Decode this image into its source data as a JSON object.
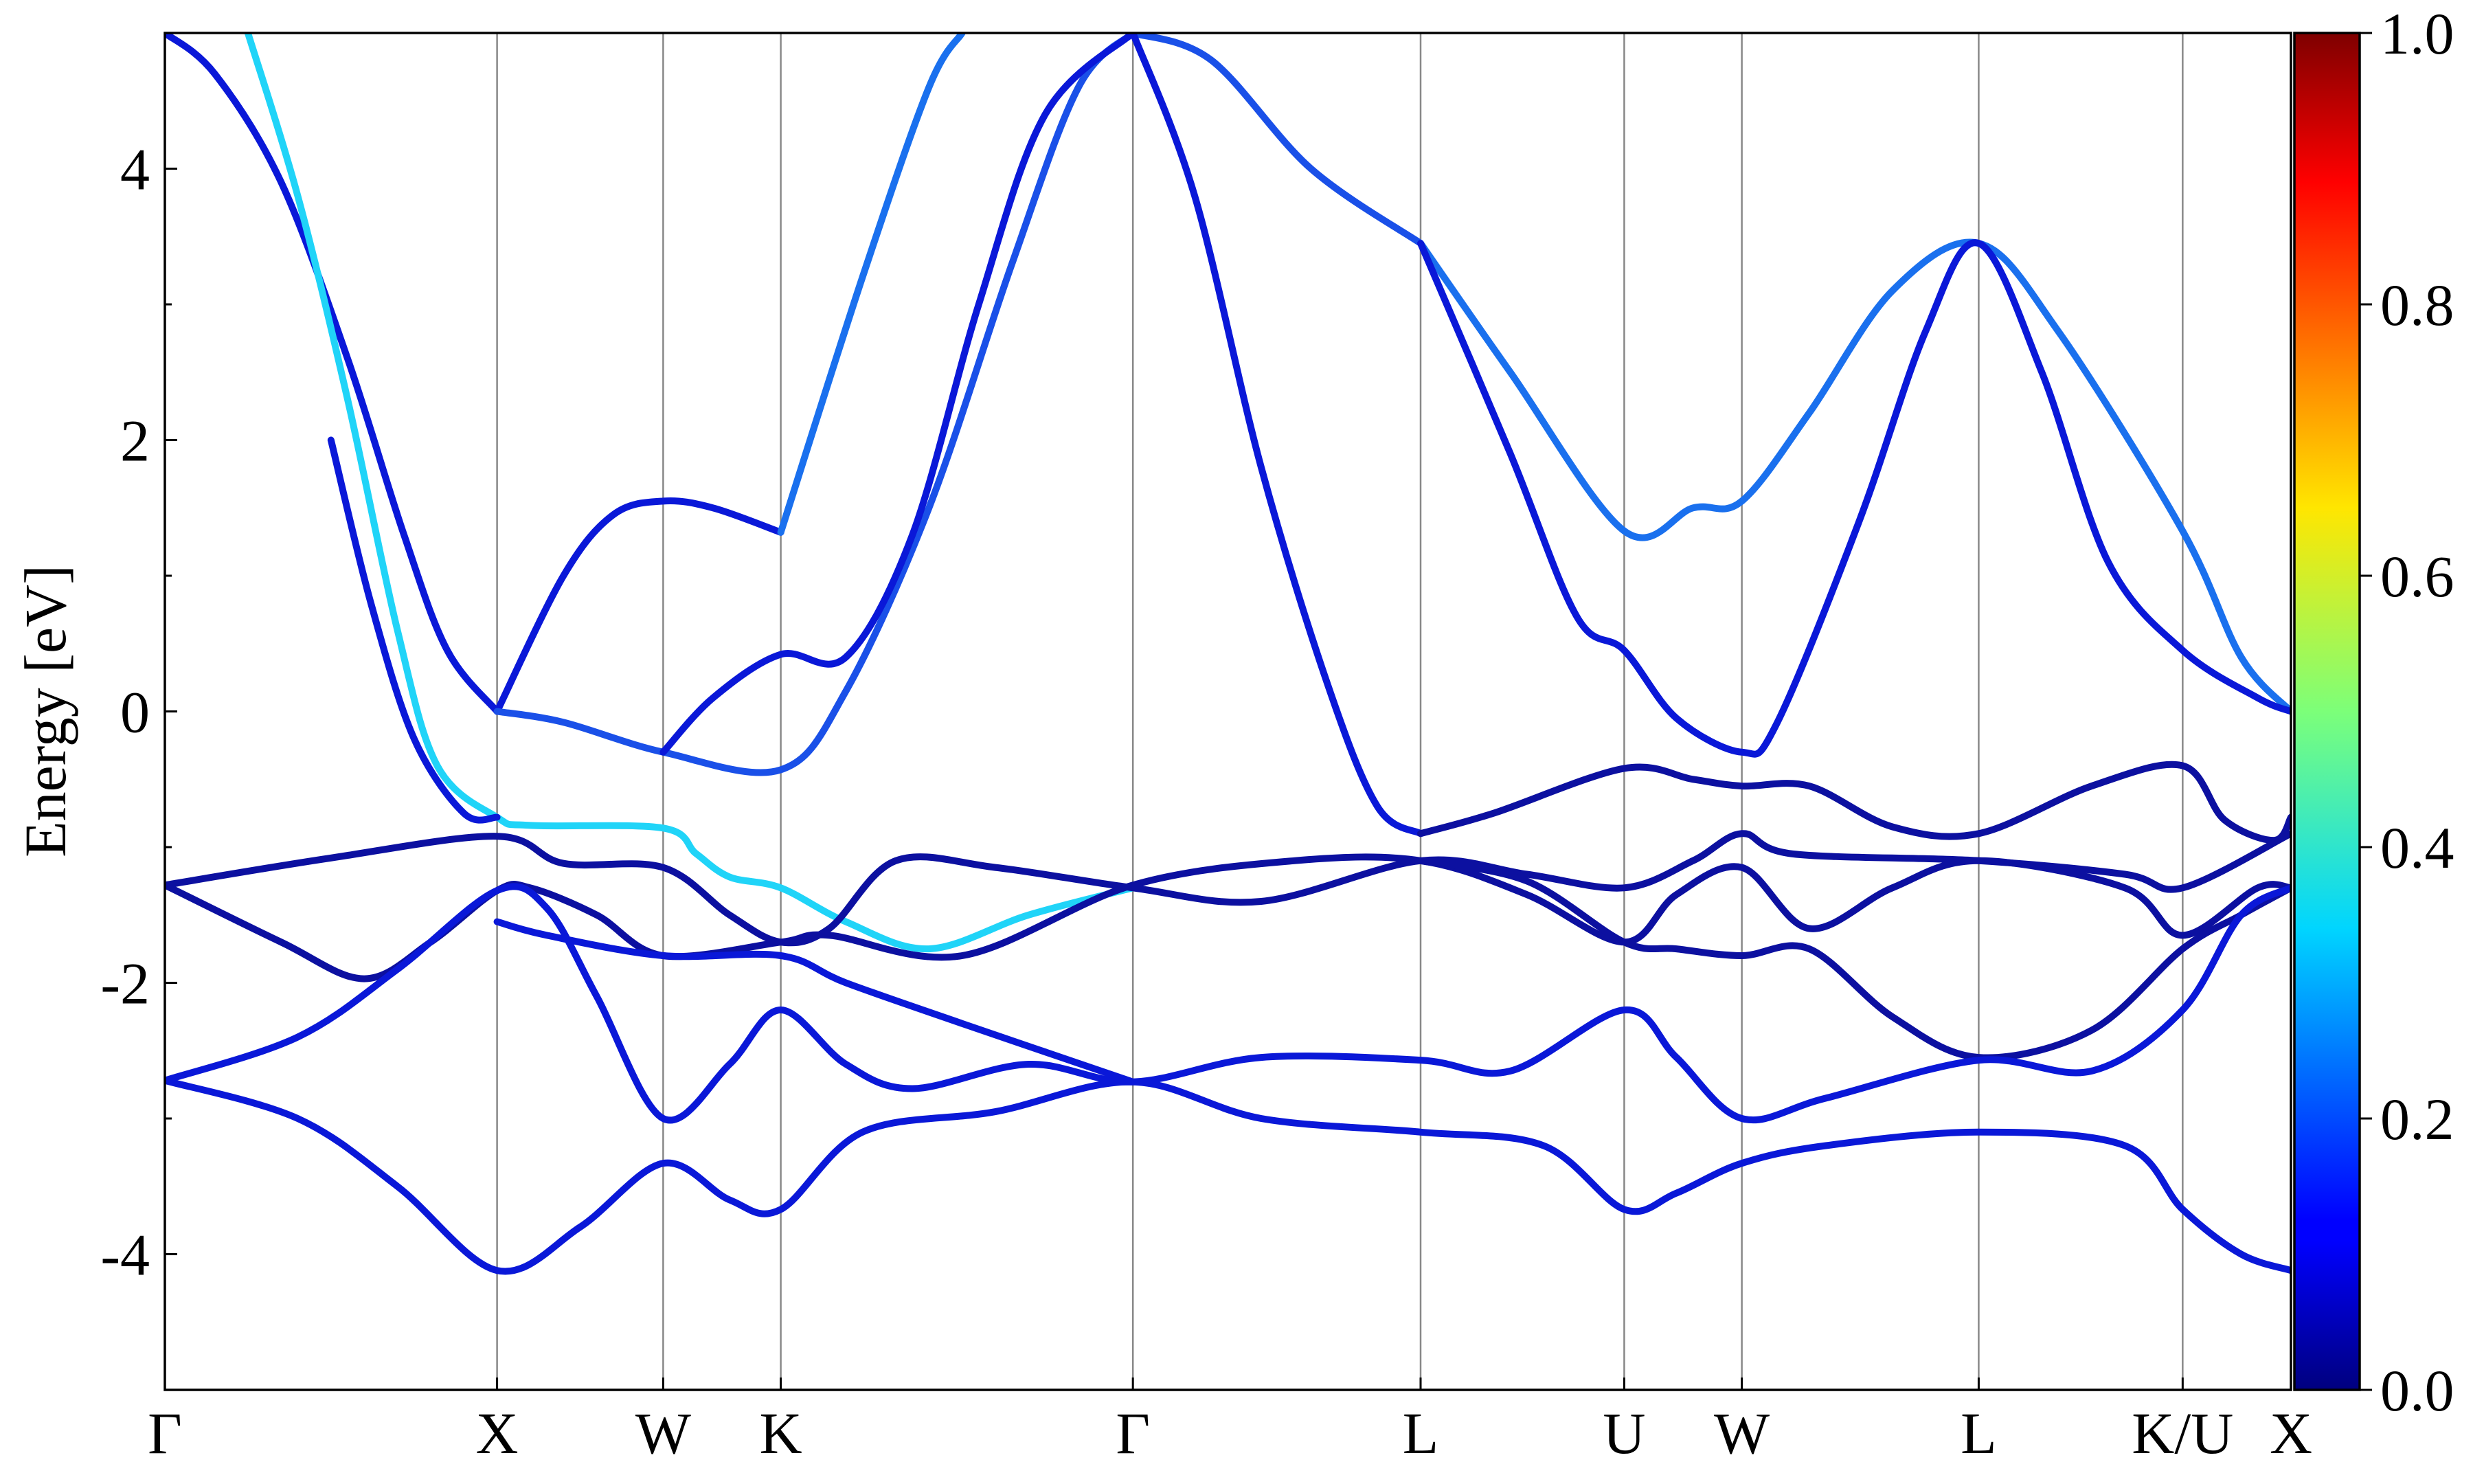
{
  "chart_data": {
    "type": "line",
    "title": "",
    "xlabel": "",
    "ylabel": "Energy [eV]",
    "ylim": [
      -5,
      5
    ],
    "yticks": [
      -4,
      -2,
      0,
      2,
      4
    ],
    "ytick_labels": [
      "-4",
      "-2",
      "0",
      "2",
      "4"
    ],
    "grid": false,
    "kpath": {
      "positions": [
        0,
        1,
        1.5,
        1.854,
        2.914,
        3.78,
        4.393,
        4.747,
        5.46,
        6.074,
        6.4
      ],
      "labels": [
        "Γ",
        "X",
        "W",
        "K",
        "Γ",
        "L",
        "U",
        "W",
        "L",
        "K/U",
        "X"
      ]
    },
    "colorbar": {
      "colormap": "jet",
      "range": [
        0.0,
        1.0
      ],
      "ticks": [
        0.0,
        0.2,
        0.4,
        0.6,
        0.8,
        1.0
      ],
      "tick_labels": [
        "0.0",
        "0.2",
        "0.4",
        "0.6",
        "0.8",
        "1.0"
      ]
    },
    "series": [
      {
        "color": "#0a18d8",
        "points": [
          [
            0,
            5.0
          ],
          [
            0.15,
            4.7
          ],
          [
            0.35,
            3.9
          ],
          [
            0.55,
            2.6
          ],
          [
            0.72,
            1.3
          ],
          [
            0.85,
            0.45
          ],
          [
            1.0,
            0.0
          ]
        ]
      },
      {
        "color": "#20d4f8",
        "points": [
          [
            0.25,
            5.0
          ],
          [
            0.4,
            3.8
          ],
          [
            0.55,
            2.3
          ],
          [
            0.7,
            0.6
          ],
          [
            0.82,
            -0.4
          ],
          [
            1.0,
            -0.78
          ],
          [
            1.1,
            -0.84
          ],
          [
            1.5,
            -0.86
          ],
          [
            1.6,
            -1.05
          ],
          [
            1.7,
            -1.22
          ],
          [
            1.854,
            -1.3
          ],
          [
            2.05,
            -1.55
          ],
          [
            2.3,
            -1.75
          ],
          [
            2.6,
            -1.5
          ],
          [
            2.914,
            -1.3
          ]
        ]
      },
      {
        "color": "#0a18d8",
        "points": [
          [
            0.5,
            2.0
          ],
          [
            0.62,
            0.8
          ],
          [
            0.75,
            -0.2
          ],
          [
            0.9,
            -0.75
          ],
          [
            1.0,
            -0.78
          ]
        ]
      },
      {
        "color": "#0a18d8",
        "points": [
          [
            1.0,
            0.0
          ],
          [
            1.2,
            1.0
          ],
          [
            1.35,
            1.45
          ],
          [
            1.5,
            1.55
          ],
          [
            1.65,
            1.5
          ],
          [
            1.854,
            1.32
          ]
        ]
      },
      {
        "color": "#1a50e8",
        "points": [
          [
            1.0,
            0.0
          ],
          [
            1.2,
            -0.08
          ],
          [
            1.5,
            -0.3
          ],
          [
            1.854,
            -0.43
          ],
          [
            2.05,
            0.15
          ],
          [
            2.3,
            1.5
          ],
          [
            2.55,
            3.3
          ],
          [
            2.75,
            4.6
          ],
          [
            2.914,
            5.0
          ]
        ]
      },
      {
        "color": "#1a70ee",
        "points": [
          [
            1.854,
            1.32
          ],
          [
            2.1,
            3.2
          ],
          [
            2.3,
            4.6
          ],
          [
            2.4,
            5.0
          ]
        ]
      },
      {
        "color": "#0a18d8",
        "points": [
          [
            1.5,
            -0.3
          ],
          [
            1.65,
            0.1
          ],
          [
            1.854,
            0.42
          ],
          [
            2.05,
            0.4
          ],
          [
            2.25,
            1.3
          ],
          [
            2.45,
            3.0
          ],
          [
            2.65,
            4.4
          ],
          [
            2.914,
            5.0
          ]
        ]
      },
      {
        "color": "#1a50e8",
        "points": [
          [
            2.914,
            5.0
          ],
          [
            3.15,
            4.8
          ],
          [
            3.45,
            4.0
          ],
          [
            3.78,
            3.45
          ]
        ]
      },
      {
        "color": "#0a18d8",
        "points": [
          [
            2.914,
            5.0
          ],
          [
            3.1,
            3.8
          ],
          [
            3.3,
            1.8
          ],
          [
            3.5,
            0.2
          ],
          [
            3.65,
            -0.7
          ],
          [
            3.78,
            -0.9
          ]
        ]
      },
      {
        "color": "#1a70ee",
        "points": [
          [
            3.78,
            3.45
          ],
          [
            4.05,
            2.5
          ],
          [
            4.393,
            1.33
          ],
          [
            4.6,
            1.5
          ],
          [
            4.747,
            1.55
          ],
          [
            4.95,
            2.2
          ],
          [
            5.2,
            3.1
          ],
          [
            5.46,
            3.45
          ],
          [
            5.7,
            2.8
          ],
          [
            6.074,
            1.33
          ],
          [
            6.25,
            0.4
          ],
          [
            6.4,
            0.0
          ]
        ]
      },
      {
        "color": "#0a18d8",
        "points": [
          [
            3.78,
            3.45
          ],
          [
            4.05,
            1.9
          ],
          [
            4.25,
            0.7
          ],
          [
            4.393,
            0.45
          ],
          [
            4.55,
            -0.05
          ],
          [
            4.747,
            -0.3
          ],
          [
            4.85,
            -0.1
          ],
          [
            5.1,
            1.4
          ],
          [
            5.3,
            2.8
          ],
          [
            5.46,
            3.45
          ],
          [
            5.65,
            2.5
          ],
          [
            5.85,
            1.1
          ],
          [
            6.074,
            0.45
          ],
          [
            6.3,
            0.1
          ],
          [
            6.4,
            0.0
          ]
        ]
      },
      {
        "color": "#0c10a0",
        "points": [
          [
            3.78,
            -0.9
          ],
          [
            4.0,
            -0.75
          ],
          [
            4.393,
            -0.42
          ],
          [
            4.6,
            -0.5
          ],
          [
            4.747,
            -0.55
          ],
          [
            4.95,
            -0.55
          ],
          [
            5.2,
            -0.85
          ],
          [
            5.46,
            -0.9
          ],
          [
            5.8,
            -0.55
          ],
          [
            6.074,
            -0.4
          ],
          [
            6.2,
            -0.8
          ],
          [
            6.35,
            -0.95
          ],
          [
            6.4,
            -0.78
          ]
        ]
      },
      {
        "color": "#0c10a0",
        "points": [
          [
            0,
            -1.28
          ],
          [
            0.5,
            -1.08
          ],
          [
            1.0,
            -0.92
          ],
          [
            1.2,
            -1.12
          ],
          [
            1.5,
            -1.15
          ],
          [
            1.7,
            -1.5
          ],
          [
            1.854,
            -1.7
          ],
          [
            2.0,
            -1.6
          ],
          [
            2.2,
            -1.1
          ],
          [
            2.5,
            -1.15
          ],
          [
            2.914,
            -1.3
          ],
          [
            3.3,
            -1.4
          ],
          [
            3.78,
            -1.1
          ],
          [
            4.1,
            -1.2
          ],
          [
            4.393,
            -1.3
          ],
          [
            4.6,
            -1.1
          ],
          [
            4.747,
            -0.9
          ],
          [
            4.9,
            -1.05
          ],
          [
            5.46,
            -1.1
          ],
          [
            5.9,
            -1.2
          ],
          [
            6.074,
            -1.3
          ],
          [
            6.4,
            -0.9
          ]
        ]
      },
      {
        "color": "#0c10a0",
        "points": [
          [
            0,
            -1.28
          ],
          [
            0.35,
            -1.7
          ],
          [
            0.6,
            -1.97
          ],
          [
            0.8,
            -1.7
          ],
          [
            1.0,
            -1.32
          ],
          [
            1.1,
            -1.3
          ],
          [
            1.3,
            -1.5
          ],
          [
            1.5,
            -1.8
          ],
          [
            1.854,
            -1.7
          ],
          [
            2.0,
            -1.65
          ],
          [
            2.4,
            -1.8
          ],
          [
            2.914,
            -1.28
          ],
          [
            3.4,
            -1.1
          ],
          [
            3.78,
            -1.1
          ],
          [
            4.1,
            -1.35
          ],
          [
            4.393,
            -1.7
          ],
          [
            4.55,
            -1.35
          ],
          [
            4.747,
            -1.15
          ],
          [
            4.95,
            -1.6
          ],
          [
            5.2,
            -1.3
          ],
          [
            5.46,
            -1.1
          ],
          [
            5.9,
            -1.3
          ],
          [
            6.074,
            -1.65
          ],
          [
            6.3,
            -1.3
          ],
          [
            6.4,
            -1.3
          ]
        ]
      },
      {
        "color": "#0c10a0",
        "points": [
          [
            3.78,
            -1.1
          ],
          [
            4.1,
            -1.25
          ],
          [
            4.393,
            -1.7
          ],
          [
            4.55,
            -1.75
          ],
          [
            4.747,
            -1.8
          ],
          [
            4.95,
            -1.75
          ],
          [
            5.2,
            -2.25
          ],
          [
            5.46,
            -2.55
          ],
          [
            5.8,
            -2.35
          ],
          [
            6.074,
            -1.75
          ],
          [
            6.25,
            -1.5
          ],
          [
            6.4,
            -1.3
          ]
        ]
      },
      {
        "color": "#0a18d8",
        "points": [
          [
            0,
            -2.72
          ],
          [
            0.4,
            -2.4
          ],
          [
            0.7,
            -1.9
          ],
          [
            1.0,
            -1.32
          ],
          [
            1.15,
            -1.45
          ],
          [
            1.3,
            -2.1
          ],
          [
            1.5,
            -3.0
          ],
          [
            1.7,
            -2.6
          ],
          [
            1.854,
            -2.2
          ],
          [
            2.05,
            -2.6
          ],
          [
            2.25,
            -2.78
          ],
          [
            2.6,
            -2.6
          ],
          [
            2.914,
            -2.73
          ],
          [
            3.3,
            -2.55
          ],
          [
            3.78,
            -2.57
          ],
          [
            4.05,
            -2.65
          ],
          [
            4.393,
            -2.2
          ],
          [
            4.55,
            -2.55
          ],
          [
            4.747,
            -3.0
          ],
          [
            5.0,
            -2.85
          ],
          [
            5.46,
            -2.57
          ],
          [
            5.8,
            -2.65
          ],
          [
            6.074,
            -2.2
          ],
          [
            6.25,
            -1.5
          ],
          [
            6.4,
            -1.3
          ]
        ]
      },
      {
        "color": "#0a18d8",
        "points": [
          [
            1.0,
            -1.55
          ],
          [
            1.15,
            -1.65
          ],
          [
            1.5,
            -1.8
          ],
          [
            1.854,
            -1.8
          ],
          [
            2.05,
            -2.0
          ],
          [
            2.4,
            -2.3
          ],
          [
            2.914,
            -2.73
          ]
        ]
      },
      {
        "color": "#0a18d8",
        "points": [
          [
            0,
            -2.72
          ],
          [
            0.4,
            -3.0
          ],
          [
            0.7,
            -3.5
          ],
          [
            1.0,
            -4.12
          ],
          [
            1.25,
            -3.8
          ],
          [
            1.5,
            -3.33
          ],
          [
            1.7,
            -3.6
          ],
          [
            1.854,
            -3.67
          ],
          [
            2.1,
            -3.1
          ],
          [
            2.5,
            -2.95
          ],
          [
            2.914,
            -2.73
          ],
          [
            3.3,
            -3.0
          ],
          [
            3.78,
            -3.1
          ],
          [
            4.15,
            -3.2
          ],
          [
            4.393,
            -3.67
          ],
          [
            4.55,
            -3.55
          ],
          [
            4.747,
            -3.33
          ],
          [
            5.0,
            -3.2
          ],
          [
            5.46,
            -3.1
          ],
          [
            5.9,
            -3.2
          ],
          [
            6.074,
            -3.67
          ],
          [
            6.25,
            -4.0
          ],
          [
            6.4,
            -4.12
          ]
        ]
      }
    ]
  }
}
